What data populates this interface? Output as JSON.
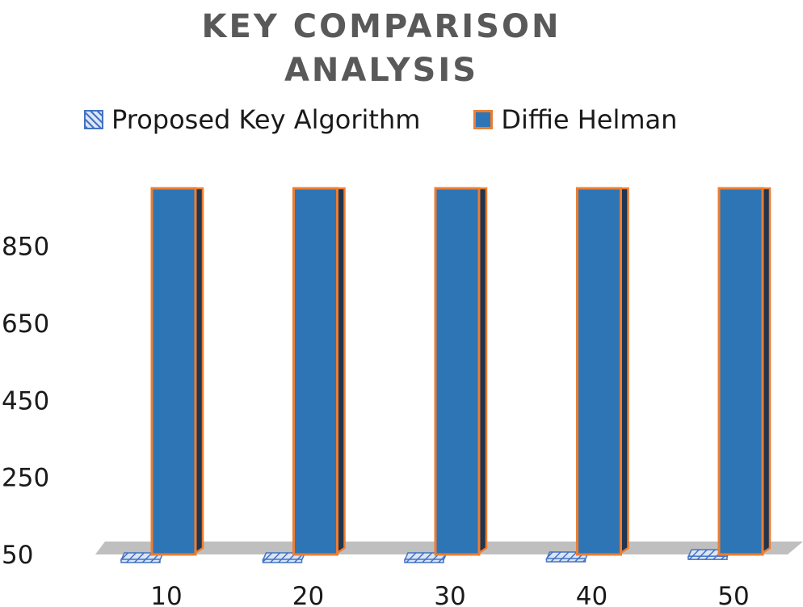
{
  "chart_data": {
    "type": "bar",
    "title": [
      "KEY COMPARISON",
      "ANALYSIS"
    ],
    "categories": [
      "10",
      "20",
      "30",
      "40",
      "50"
    ],
    "series": [
      {
        "name": "Proposed Key Algorithm",
        "values": [
          50,
          50,
          50,
          52,
          58
        ],
        "color": "#4472c4",
        "pattern": "diagonal-hatch"
      },
      {
        "name": "Diffie Helman",
        "values": [
          1000,
          1000,
          1000,
          1000,
          1000
        ],
        "color": "#2e75b6",
        "edge_color": "#ed7d31"
      }
    ],
    "y_ticks": [
      50,
      250,
      450,
      650,
      850
    ],
    "ylim": [
      50,
      1000
    ],
    "legend_position": "top",
    "grid": false,
    "style": "3d-column"
  }
}
